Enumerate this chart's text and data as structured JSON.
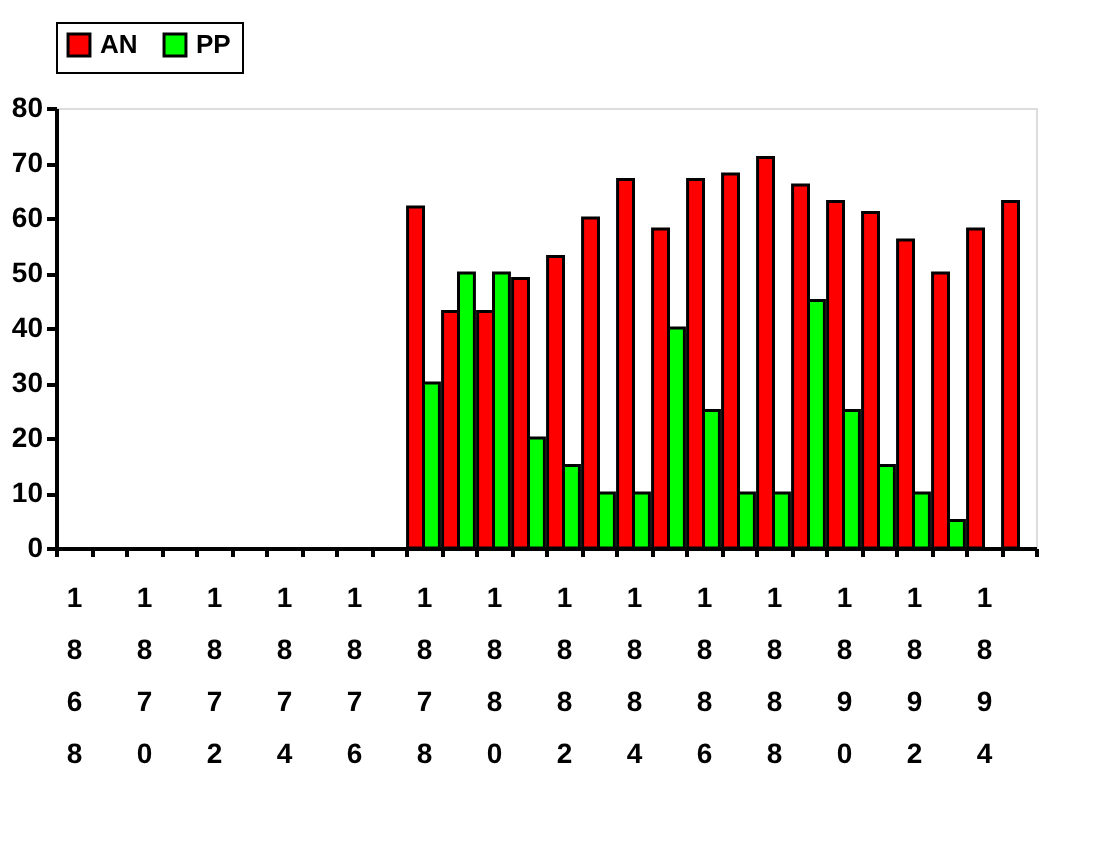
{
  "chart_data": {
    "type": "bar",
    "categories": [
      "1868",
      null,
      "1870",
      null,
      "1872",
      null,
      "1874",
      null,
      "1876",
      null,
      "1878",
      null,
      "1880",
      null,
      "1882",
      null,
      "1884",
      null,
      "1886",
      null,
      "1888",
      null,
      "1890",
      null,
      "1892",
      null,
      "1894",
      null
    ],
    "series": [
      {
        "name": "AN",
        "color": "#ff0000",
        "values": [
          null,
          null,
          null,
          null,
          null,
          null,
          null,
          null,
          null,
          null,
          62,
          43,
          43,
          49,
          53,
          60,
          67,
          58,
          67,
          68,
          71,
          66,
          63,
          61,
          56,
          50,
          58,
          63
        ]
      },
      {
        "name": "PP",
        "color": "#00ff00",
        "values": [
          null,
          null,
          null,
          null,
          null,
          null,
          null,
          null,
          null,
          null,
          30,
          50,
          50,
          20,
          15,
          10,
          10,
          40,
          25,
          10,
          10,
          45,
          25,
          15,
          10,
          5,
          null,
          null
        ]
      }
    ],
    "ylim": [
      0,
      80
    ],
    "yticks": [
      0,
      10,
      20,
      30,
      40,
      50,
      60,
      70,
      80
    ],
    "grid": false,
    "legend": "top"
  }
}
